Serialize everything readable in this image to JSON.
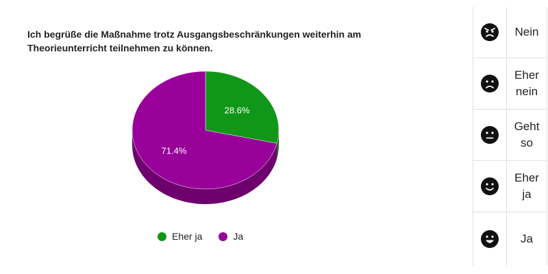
{
  "chart_data": {
    "type": "pie",
    "title": "Ich begrüße die Maßnahme trotz Ausgangsbeschränkungen weiterhin am Theorieunterricht teilnehmen zu können.",
    "categories": [
      "Eher ja",
      "Ja"
    ],
    "values": [
      28.6,
      71.4
    ],
    "value_labels": [
      "28.6%",
      "71.4%"
    ],
    "colors": [
      "#109618",
      "#990099"
    ],
    "legend_position": "bottom",
    "style": "3d"
  },
  "scale": {
    "items": [
      {
        "label": "Nein",
        "icon": "angry-face-icon"
      },
      {
        "label": "Eher nein",
        "icon": "frowning-face-icon"
      },
      {
        "label": "Geht so",
        "icon": "neutral-face-icon"
      },
      {
        "label": "Eher ja",
        "icon": "smiling-face-icon"
      },
      {
        "label": "Ja",
        "icon": "grinning-face-icon"
      }
    ]
  }
}
